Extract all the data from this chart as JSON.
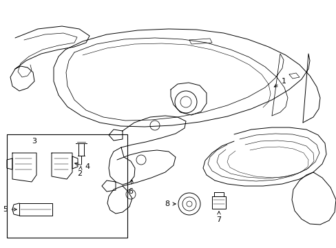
{
  "bg_color": "#ffffff",
  "line_color": "#000000",
  "fig_width": 4.89,
  "fig_height": 3.6,
  "dpi": 100,
  "font_size": 8,
  "lw": 0.7
}
